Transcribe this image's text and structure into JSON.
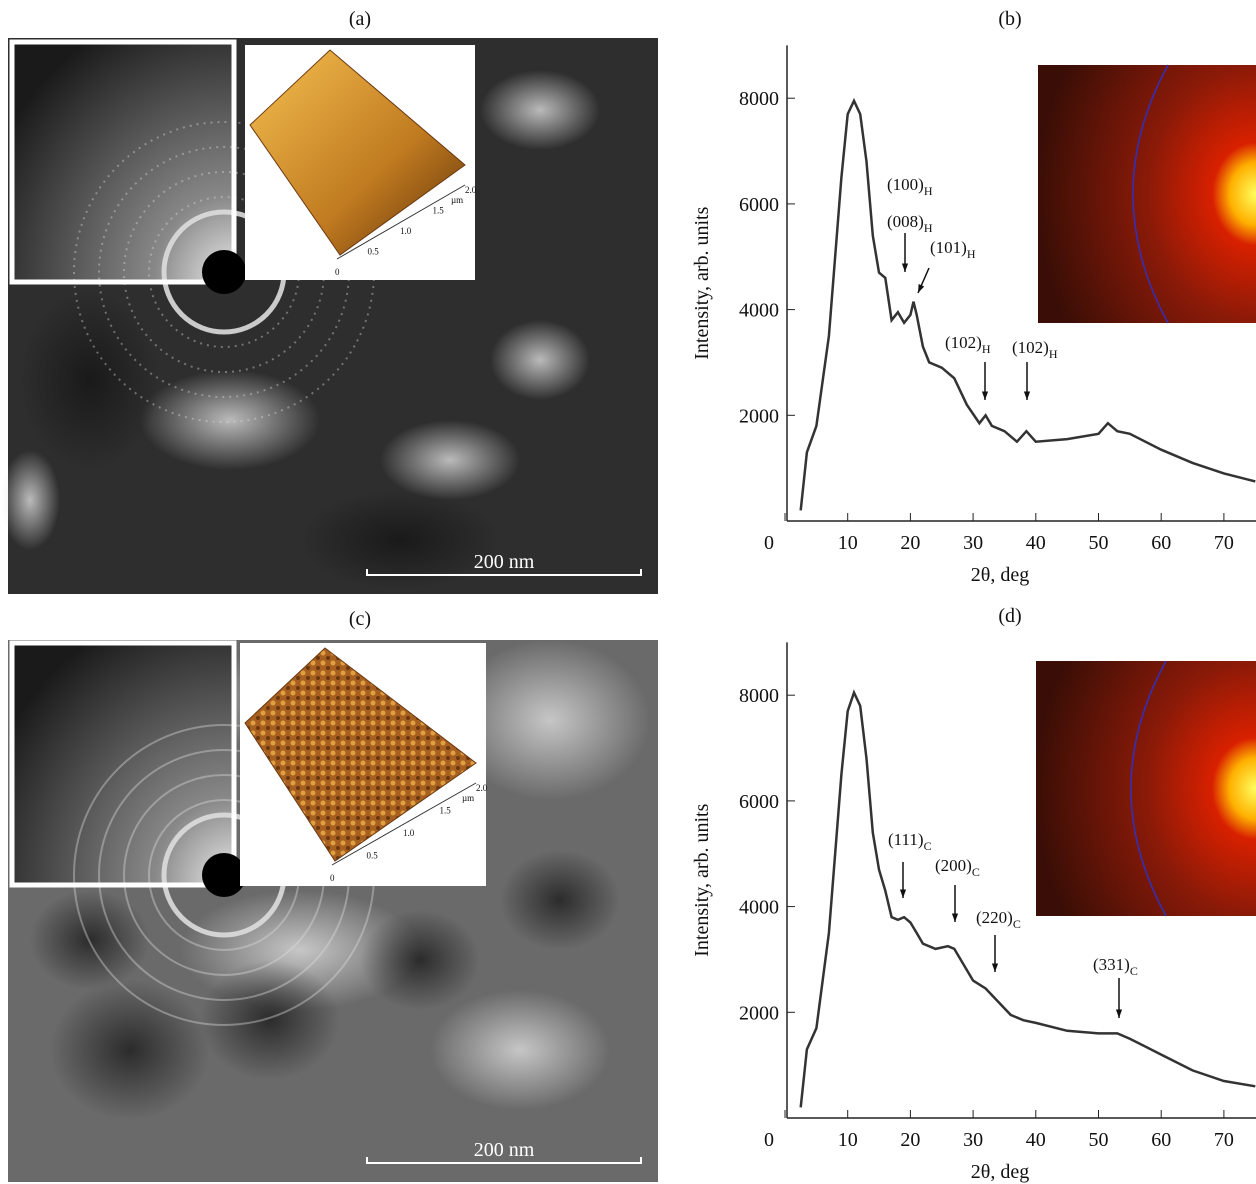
{
  "panels": [
    {
      "label": "(a)",
      "scale_bar": "200 nm",
      "afm_ticks": [
        "0",
        "0.5",
        "1.0",
        "1.5",
        "2.0"
      ],
      "afm_unit": "µm"
    },
    {
      "label": "(b)"
    },
    {
      "label": "(c)",
      "scale_bar": "200 nm",
      "afm_ticks": [
        "0",
        "0.5",
        "1.0",
        "1.5",
        "2.0"
      ],
      "afm_unit": "µm"
    },
    {
      "label": "(d)"
    }
  ],
  "chart_data": [
    {
      "type": "line",
      "color": "#333333",
      "xlabel": "2θ, deg",
      "ylabel": "Intensity, arb. units",
      "xlim": [
        0,
        75
      ],
      "ylim": [
        0,
        9000
      ],
      "xticks": [
        0,
        10,
        20,
        30,
        40,
        50,
        60,
        70
      ],
      "yticks": [
        2000,
        4000,
        6000,
        8000
      ],
      "x": [
        2.5,
        3.5,
        5,
        7,
        9,
        10,
        11,
        12,
        13,
        14,
        15,
        16,
        17,
        18,
        19,
        20,
        20.5,
        21,
        22,
        23,
        25,
        27,
        29,
        31,
        32,
        33,
        35,
        37,
        38.5,
        40,
        45,
        50,
        51.5,
        53,
        55,
        60,
        65,
        70,
        75
      ],
      "values": [
        200,
        1300,
        1800,
        3500,
        6500,
        7700,
        7950,
        7700,
        6800,
        5400,
        4700,
        4600,
        3800,
        3950,
        3750,
        3900,
        4150,
        3900,
        3300,
        3000,
        2900,
        2700,
        2200,
        1850,
        2000,
        1800,
        1700,
        1500,
        1700,
        1500,
        1550,
        1650,
        1850,
        1700,
        1650,
        1350,
        1100,
        900,
        750
      ],
      "annotations": [
        {
          "text": "(100)",
          "sub": "H"
        },
        {
          "text": "(008)",
          "sub": "H"
        },
        {
          "text": "(101)",
          "sub": "H"
        },
        {
          "text": "(102)",
          "sub": "H"
        },
        {
          "text": "(102)",
          "sub": "H"
        }
      ]
    },
    {
      "type": "line",
      "color": "#333333",
      "xlabel": "2θ, deg",
      "ylabel": "Intensity, arb. units",
      "xlim": [
        0,
        75
      ],
      "ylim": [
        0,
        9000
      ],
      "xticks": [
        0,
        10,
        20,
        30,
        40,
        50,
        60,
        70
      ],
      "yticks": [
        2000,
        4000,
        6000,
        8000
      ],
      "x": [
        2.5,
        3.5,
        5,
        7,
        9,
        10,
        11,
        12,
        13,
        14,
        15,
        16,
        17,
        18,
        19,
        20,
        21,
        22,
        24,
        26,
        27,
        28,
        30,
        32,
        34,
        36,
        38,
        40,
        45,
        50,
        53,
        55,
        60,
        65,
        70,
        75
      ],
      "values": [
        200,
        1300,
        1700,
        3500,
        6500,
        7700,
        8050,
        7800,
        6800,
        5400,
        4700,
        4300,
        3800,
        3750,
        3800,
        3700,
        3500,
        3300,
        3200,
        3250,
        3200,
        3000,
        2600,
        2450,
        2200,
        1950,
        1850,
        1800,
        1650,
        1600,
        1600,
        1500,
        1200,
        900,
        700,
        600
      ],
      "annotations": [
        {
          "text": "(111)",
          "sub": "C"
        },
        {
          "text": "(200)",
          "sub": "C"
        },
        {
          "text": "(220)",
          "sub": "C"
        },
        {
          "text": "(331)",
          "sub": "C"
        }
      ]
    }
  ]
}
